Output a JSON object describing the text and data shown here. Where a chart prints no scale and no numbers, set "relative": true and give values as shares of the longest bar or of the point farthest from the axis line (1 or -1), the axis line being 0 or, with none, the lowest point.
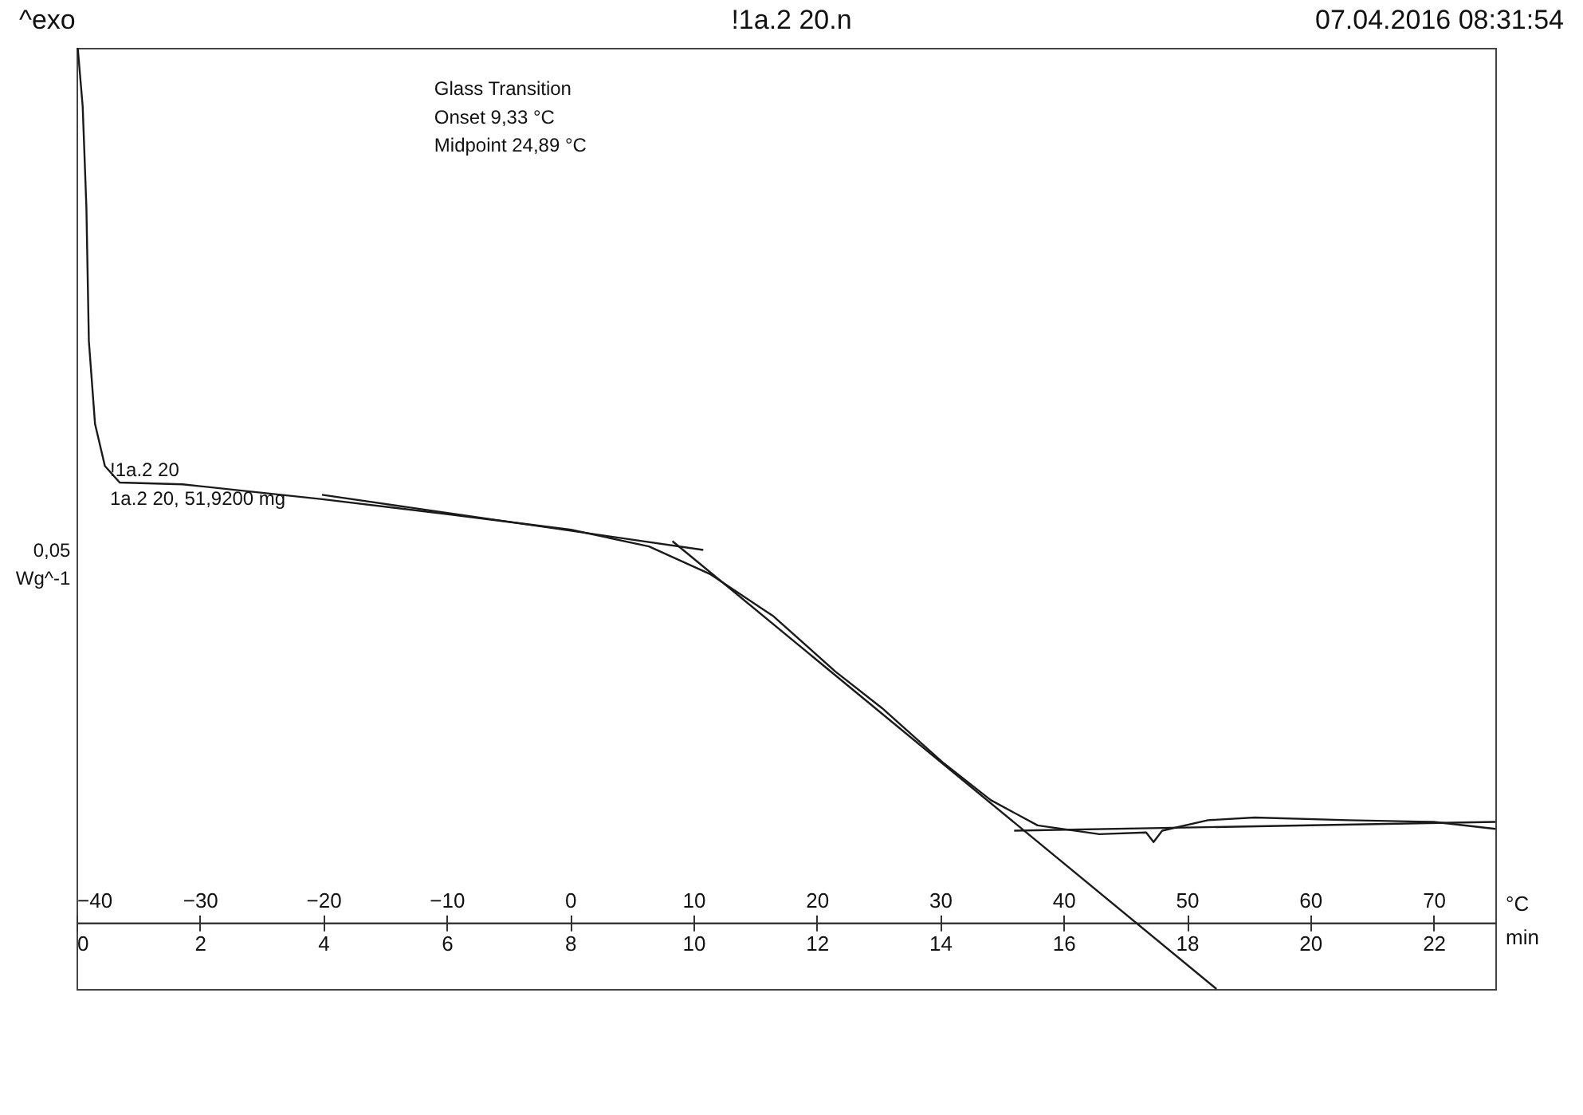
{
  "chart_data": {
    "type": "line",
    "relative": true,
    "title": "!1a.2 20.n",
    "xlabel": "°C",
    "x2label": "min",
    "xlim": [
      -40,
      75
    ],
    "xticks": [
      -40,
      -30,
      -20,
      -10,
      0,
      10,
      20,
      30,
      40,
      50,
      60,
      70
    ],
    "x2lim": [
      0,
      23
    ],
    "x2ticks": [
      0,
      2,
      4,
      6,
      8,
      10,
      12,
      14,
      16,
      18,
      20,
      22
    ],
    "line_style": "solid",
    "annotations": [
      "^exo",
      "07.04.2016 08:31:54",
      "Glass Transition",
      "Onset      9,33 °C",
      "Midpoint  24,89 °C",
      "!1a.2 20",
      "1a.2 20, 51,9200 mg",
      "0,05",
      "Wg^-1"
    ],
    "series": [
      {
        "color": "#1a1a1a",
        "x": [
          -39.9,
          -39.5,
          -39.2,
          -39.0,
          -38.5,
          -37.7,
          -36.5,
          -31.4,
          -20.1,
          -10.0,
          0.1,
          6.4,
          11.4,
          16.5,
          21.5,
          25.3,
          30.3,
          34.1,
          37.9,
          42.9,
          46.7,
          47.3,
          48.0,
          51.7,
          55.5,
          63.1,
          70.0,
          75.0
        ],
        "values": [
          1.0,
          0.933,
          0.818,
          0.665,
          0.57,
          0.522,
          0.503,
          0.501,
          0.484,
          0.467,
          0.449,
          0.43,
          0.398,
          0.35,
          0.287,
          0.245,
          0.182,
          0.14,
          0.111,
          0.101,
          0.103,
          0.092,
          0.105,
          0.117,
          0.12,
          0.117,
          0.115,
          0.107
        ]
      },
      {
        "type": "line",
        "color": "#1a1a1a",
        "x": [
          -20.1,
          10.8
        ],
        "values": [
          0.489,
          0.426
        ]
      },
      {
        "type": "line",
        "color": "#1a1a1a",
        "x": [
          8.3,
          52.4
        ],
        "values": [
          0.436,
          -0.076
        ]
      },
      {
        "type": "line",
        "color": "#1a1a1a",
        "x": [
          36.0,
          75.0
        ],
        "values": [
          0.105,
          0.115
        ]
      }
    ]
  }
}
